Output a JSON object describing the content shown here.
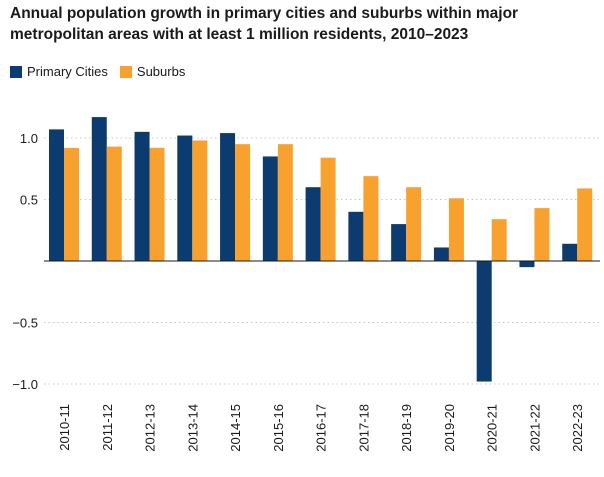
{
  "chart_data": {
    "type": "bar",
    "title": "Annual population growth in primary cities and suburbs within major metropolitan areas with at least 1 million residents, 2010–2023",
    "xlabel": "",
    "ylabel": "",
    "ylim": [
      -1.1,
      1.3
    ],
    "yticks": [
      -1.0,
      -0.5,
      0,
      0.5,
      1.0
    ],
    "ytick_labels": [
      "−1.0",
      "−0.5",
      "",
      "0.5",
      "1.0"
    ],
    "grid": true,
    "legend_position": "top-left",
    "categories": [
      "2010-11",
      "2011-12",
      "2012-13",
      "2013-14",
      "2014-15",
      "2015-16",
      "2016-17",
      "2017-18",
      "2018-19",
      "2019-20",
      "2020-21",
      "2021-22",
      "2022-23"
    ],
    "series": [
      {
        "name": "Primary Cities",
        "color": "#0b3b6f",
        "values": [
          1.07,
          1.17,
          1.05,
          1.02,
          1.04,
          0.85,
          0.6,
          0.4,
          0.3,
          0.11,
          -0.98,
          -0.05,
          0.14
        ]
      },
      {
        "name": "Suburbs",
        "color": "#f9a12f",
        "values": [
          0.92,
          0.93,
          0.92,
          0.98,
          0.95,
          0.95,
          0.84,
          0.69,
          0.6,
          0.51,
          0.34,
          0.43,
          0.59
        ]
      }
    ]
  }
}
